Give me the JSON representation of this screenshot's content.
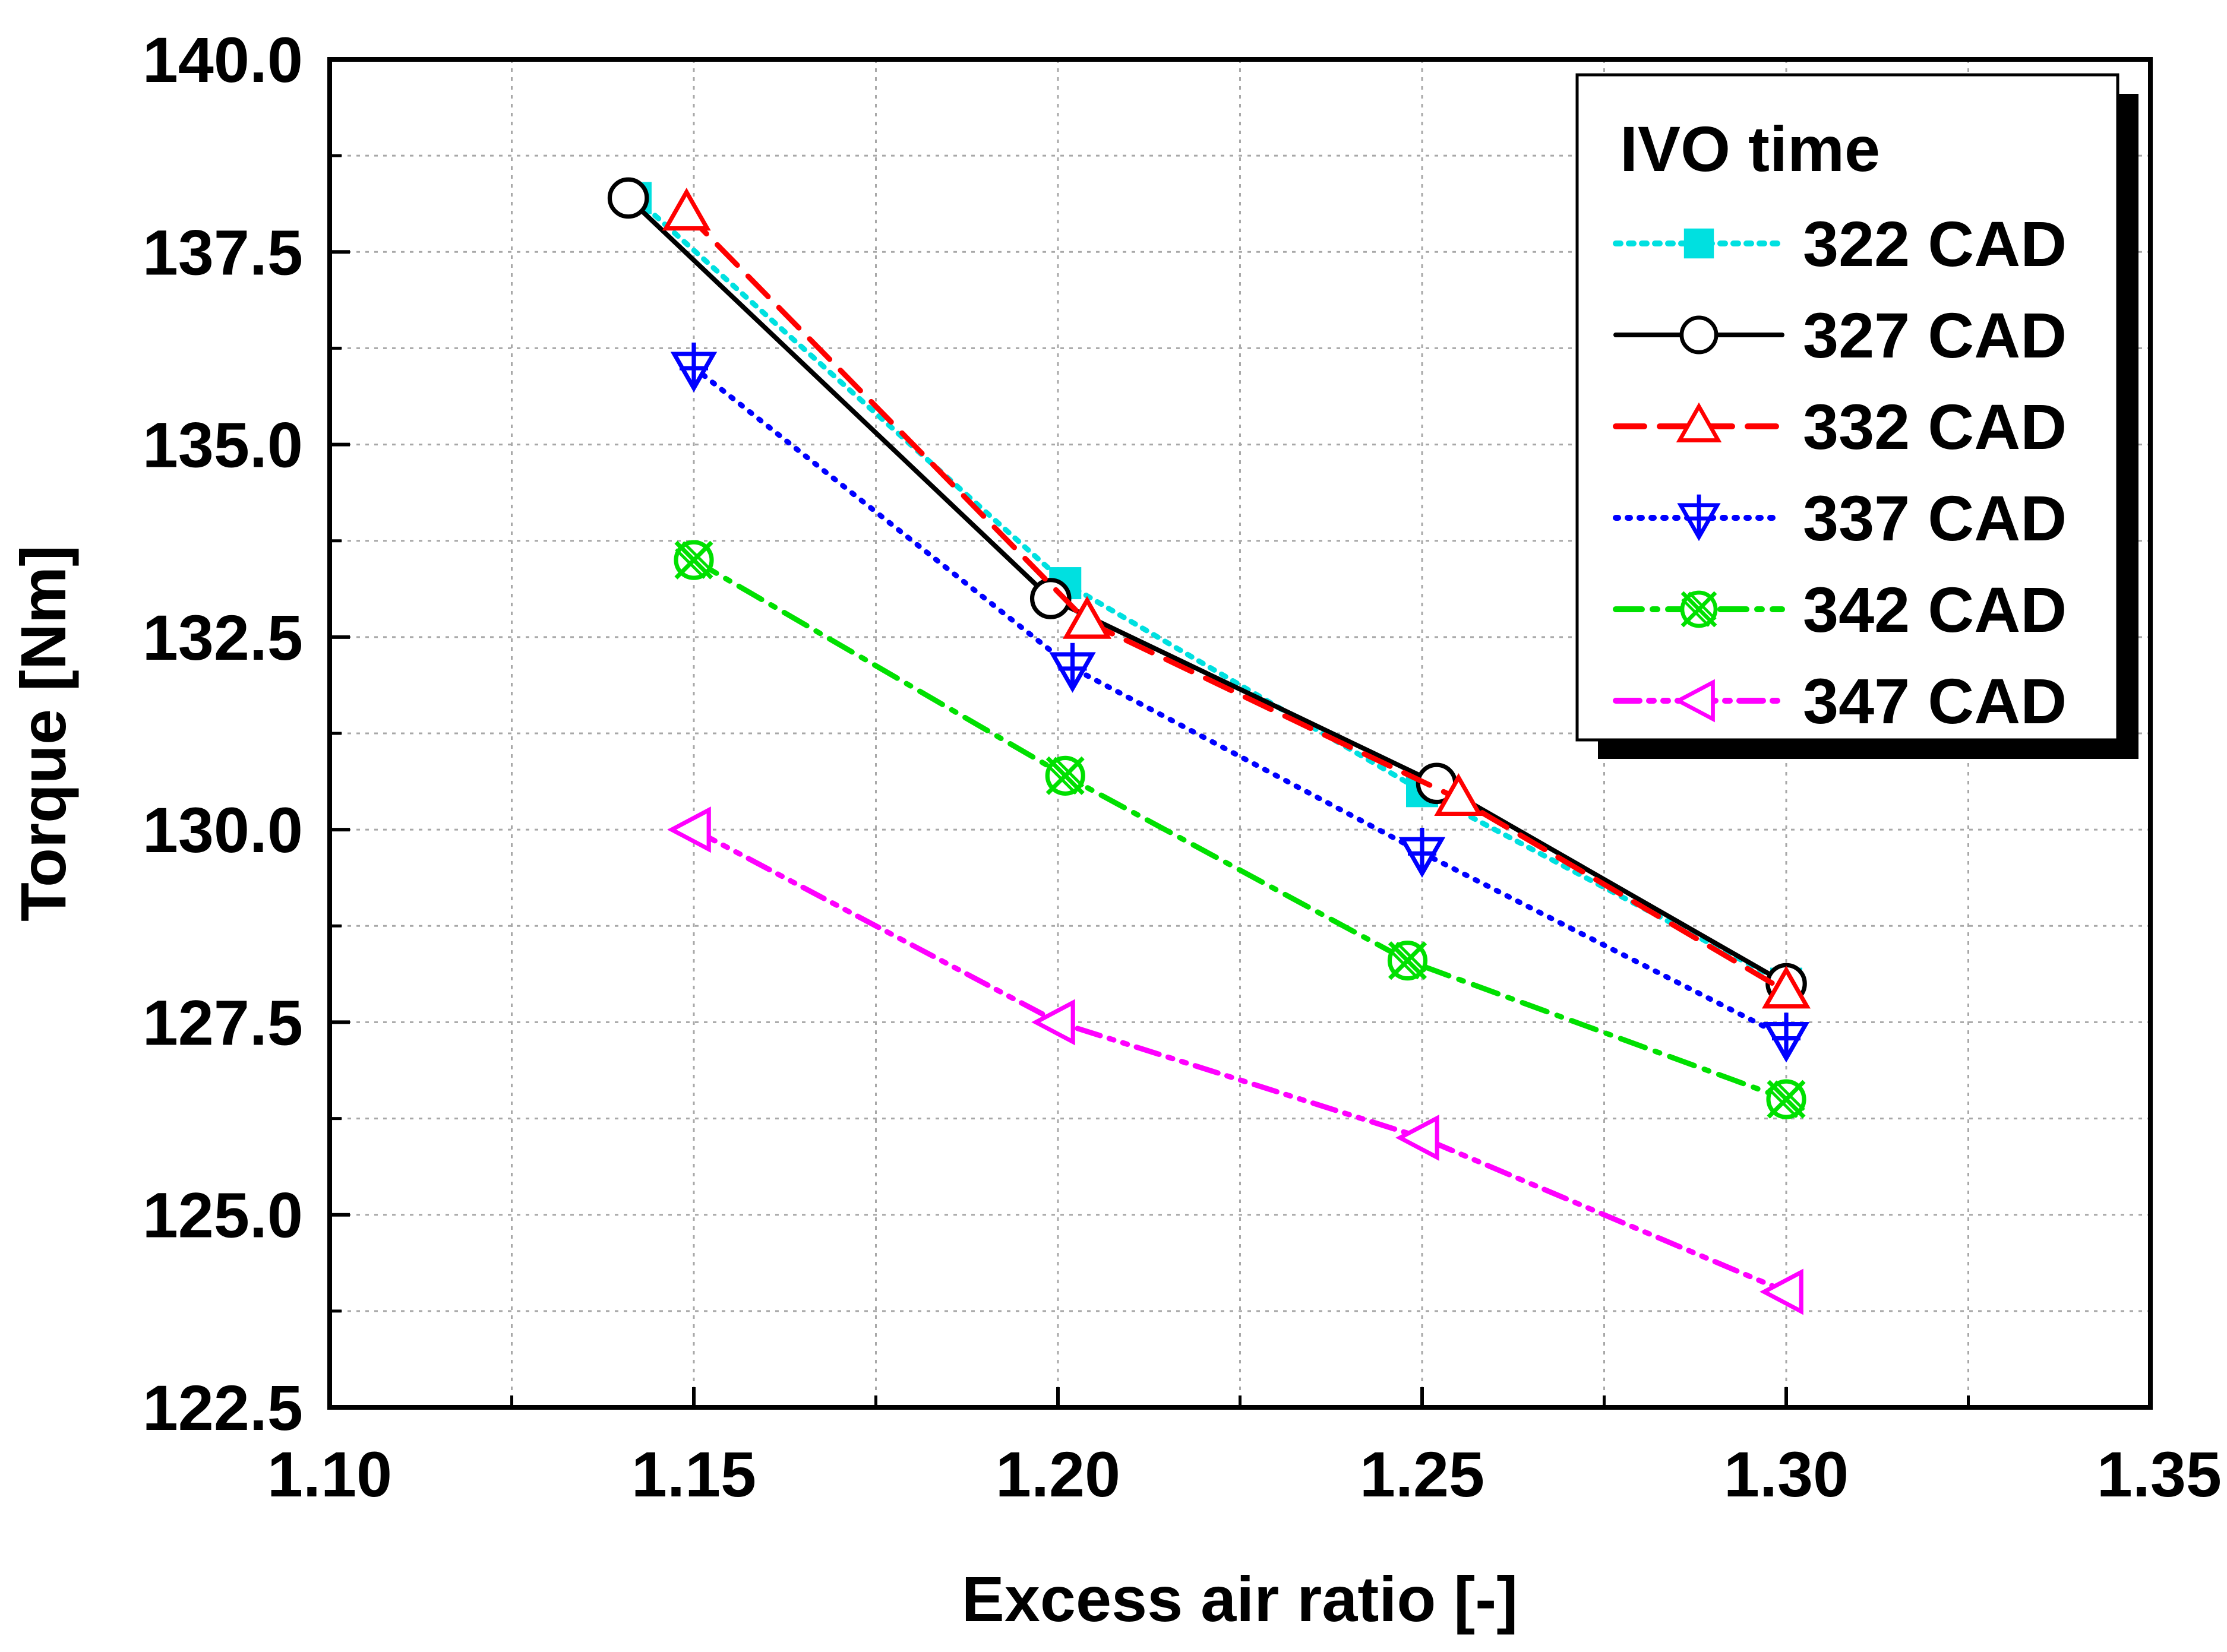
{
  "chart_data": {
    "type": "line",
    "title": "",
    "xlabel": "Excess air ratio [-]",
    "ylabel": "Torque [Nm]",
    "xlim": [
      1.1,
      1.35
    ],
    "ylim": [
      122.5,
      140.0
    ],
    "x_ticks": [
      1.1,
      1.15,
      1.2,
      1.25,
      1.3,
      1.35
    ],
    "x_tick_labels": [
      "1.10",
      "1.15",
      "1.20",
      "1.25",
      "1.30",
      "1.35"
    ],
    "y_ticks": [
      122.5,
      125.0,
      127.5,
      130.0,
      132.5,
      135.0,
      137.5,
      140.0
    ],
    "y_tick_labels": [
      "122.5",
      "125.0",
      "127.5",
      "130.0",
      "132.5",
      "135.0",
      "137.5",
      "140.0"
    ],
    "grid": true,
    "legend_title": "IVO time",
    "legend_position": "top-right",
    "series": [
      {
        "name": "322 CAD",
        "color": "#00e0e0",
        "dash": "dot",
        "marker": "square",
        "x": [
          1.142,
          1.201,
          1.25,
          1.3
        ],
        "y": [
          138.2,
          133.2,
          130.5,
          128.0
        ]
      },
      {
        "name": "327 CAD",
        "color": "#000000",
        "dash": "solid",
        "marker": "circle",
        "x": [
          1.141,
          1.199,
          1.252,
          1.3
        ],
        "y": [
          138.2,
          133.0,
          130.6,
          128.0
        ]
      },
      {
        "name": "332 CAD",
        "color": "#ff0000",
        "dash": "dash",
        "marker": "triangle-up",
        "x": [
          1.149,
          1.204,
          1.255,
          1.3
        ],
        "y": [
          138.0,
          132.7,
          130.4,
          127.9
        ]
      },
      {
        "name": "337 CAD",
        "color": "#0000ff",
        "dash": "dot-fine",
        "marker": "triangle-down-plus",
        "x": [
          1.15,
          1.202,
          1.25,
          1.3
        ],
        "y": [
          136.0,
          132.1,
          129.7,
          127.3
        ]
      },
      {
        "name": "342 CAD",
        "color": "#00e000",
        "dash": "dash-dot",
        "marker": "circle-x",
        "x": [
          1.15,
          1.201,
          1.248,
          1.3
        ],
        "y": [
          133.5,
          130.7,
          128.3,
          126.5
        ]
      },
      {
        "name": "347 CAD",
        "color": "#ff00ff",
        "dash": "dash-dot-dot",
        "marker": "triangle-left",
        "x": [
          1.15,
          1.2,
          1.25,
          1.3
        ],
        "y": [
          130.0,
          127.5,
          126.0,
          124.0
        ]
      }
    ]
  }
}
